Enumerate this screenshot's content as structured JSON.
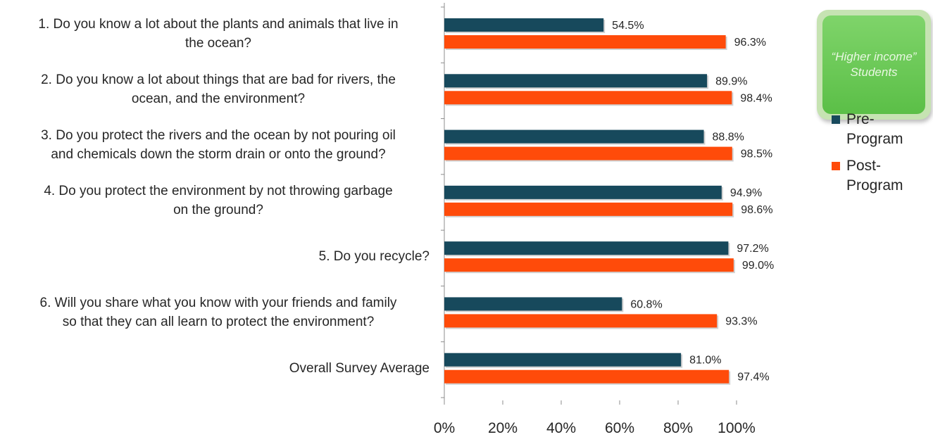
{
  "chart_data": {
    "type": "bar",
    "orientation": "horizontal",
    "categories": [
      "1. Do you know a lot about the plants and animals that live in the ocean?",
      "2. Do you know a lot about things that are bad for rivers, the ocean, and the environment?",
      "3. Do you protect the rivers and the ocean by not pouring oil and chemicals down the storm drain or onto the ground?",
      "4. Do you protect the environment by not throwing garbage on the ground?",
      "5. Do you recycle?",
      "6. Will you share what you know with your friends and family so that they can all learn to protect the environment?",
      "Overall Survey Average"
    ],
    "series": [
      {
        "name": "Pre-Program",
        "color": "#17495c",
        "values": [
          54.5,
          89.9,
          88.8,
          94.9,
          97.2,
          60.8,
          81.0
        ],
        "labels": [
          "54.5%",
          "89.9%",
          "88.8%",
          "94.9%",
          "97.2%",
          "60.8%",
          "81.0%"
        ]
      },
      {
        "name": "Post-Program",
        "color": "#ff4b0a",
        "values": [
          96.3,
          98.4,
          98.5,
          98.6,
          99.0,
          93.3,
          97.4
        ],
        "labels": [
          "96.3%",
          "98.4%",
          "98.5%",
          "98.6%",
          "99.0%",
          "93.3%",
          "97.4%"
        ]
      }
    ],
    "xlim": [
      0,
      100
    ],
    "xticks": [
      "0%",
      "20%",
      "40%",
      "60%",
      "80%",
      "100%"
    ],
    "grid": false,
    "legend": {
      "position": "right",
      "entries": [
        "Pre-Program",
        "Post-Program"
      ]
    }
  },
  "category_lines": [
    [
      "1. Do you know a lot about the plants and animals that live in",
      "the ocean?"
    ],
    [
      "2. Do you know a lot about things that are bad for rivers, the",
      "ocean, and the environment?"
    ],
    [
      "3. Do you protect the rivers and the ocean by not pouring oil",
      "and chemicals down the storm drain or onto the ground?"
    ],
    [
      "4. Do you protect the environment by not throwing garbage",
      "on the ground?"
    ],
    [
      "5. Do you recycle?"
    ],
    [
      "6. Will you share what you know with your friends and family",
      "so that they can all learn to protect the environment?"
    ],
    [
      "Overall Survey Average"
    ]
  ],
  "callout": {
    "text": "“Higher income” Students"
  },
  "legend": {
    "pre_lines": [
      "Pre-",
      "Program"
    ],
    "post_lines": [
      "Post-",
      "Program"
    ]
  }
}
